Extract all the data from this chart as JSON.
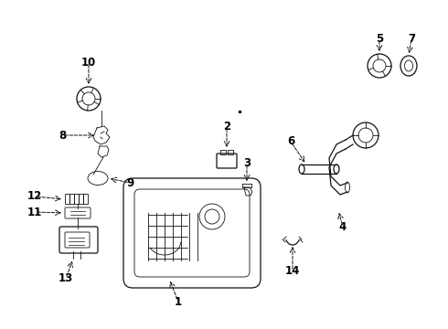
{
  "bg_color": "#ffffff",
  "line_color": "#111111",
  "label_color": "#000000",
  "fig_w": 4.9,
  "fig_h": 3.6,
  "dpi": 100
}
